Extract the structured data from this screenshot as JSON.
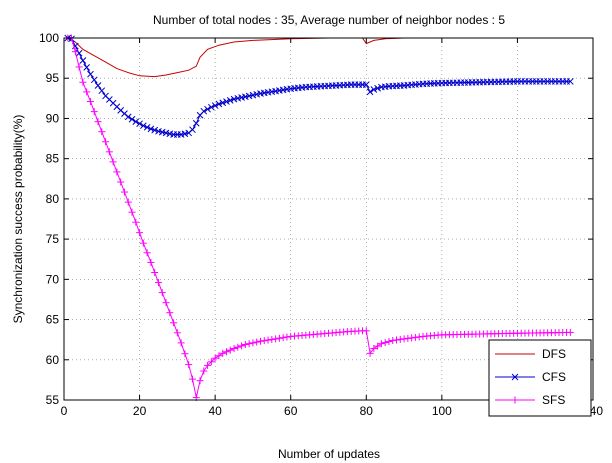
{
  "chart_data": {
    "type": "line",
    "title": "Number of total nodes : 35, Average number of neighbor nodes : 5",
    "xlabel": "Number of updates",
    "ylabel": "Synchronization success probability(%)",
    "xlim": [
      0,
      140
    ],
    "ylim": [
      55,
      100
    ],
    "xticks": [
      0,
      20,
      40,
      60,
      80,
      100,
      120,
      140
    ],
    "yticks": [
      55,
      60,
      65,
      70,
      75,
      80,
      85,
      90,
      95,
      100
    ],
    "grid": true,
    "legend_position": "bottom-right",
    "series": [
      {
        "name": "DFS",
        "color": "#cc0000",
        "marker": "none",
        "points": [
          [
            1,
            100
          ],
          [
            3,
            99.5
          ],
          [
            5,
            98.6
          ],
          [
            8,
            97.8
          ],
          [
            11,
            97
          ],
          [
            14,
            96.2
          ],
          [
            17,
            95.7
          ],
          [
            20,
            95.3
          ],
          [
            24,
            95.2
          ],
          [
            27,
            95.4
          ],
          [
            30,
            95.7
          ],
          [
            33,
            96
          ],
          [
            35,
            96.5
          ],
          [
            36,
            97.6
          ],
          [
            38,
            98.6
          ],
          [
            41,
            99.1
          ],
          [
            45,
            99.5
          ],
          [
            50,
            99.7
          ],
          [
            60,
            99.9
          ],
          [
            70,
            100
          ],
          [
            79,
            100
          ],
          [
            80,
            99.3
          ],
          [
            82,
            99.7
          ],
          [
            85,
            99.9
          ],
          [
            90,
            100
          ],
          [
            100,
            100
          ],
          [
            110,
            100
          ],
          [
            120,
            100
          ],
          [
            134,
            100
          ]
        ]
      },
      {
        "name": "CFS",
        "color": "#0000cc",
        "marker": "x",
        "points": [
          [
            1,
            100
          ],
          [
            2,
            99.9
          ],
          [
            3,
            99
          ],
          [
            5,
            97.2
          ],
          [
            7,
            95.5
          ],
          [
            9,
            94.1
          ],
          [
            11,
            92.8
          ],
          [
            13,
            91.9
          ],
          [
            15,
            91
          ],
          [
            17,
            90.2
          ],
          [
            19,
            89.6
          ],
          [
            21,
            89.1
          ],
          [
            23,
            88.7
          ],
          [
            25,
            88.4
          ],
          [
            27,
            88.2
          ],
          [
            29,
            88
          ],
          [
            31,
            88
          ],
          [
            33,
            88.2
          ],
          [
            34,
            88.6
          ],
          [
            35,
            89.4
          ],
          [
            36,
            90.4
          ],
          [
            37,
            90.9
          ],
          [
            39,
            91.4
          ],
          [
            41,
            91.8
          ],
          [
            43,
            92.1
          ],
          [
            45,
            92.4
          ],
          [
            48,
            92.7
          ],
          [
            52,
            93.1
          ],
          [
            56,
            93.4
          ],
          [
            60,
            93.7
          ],
          [
            64,
            93.9
          ],
          [
            68,
            94
          ],
          [
            72,
            94.1
          ],
          [
            76,
            94.2
          ],
          [
            79,
            94.2
          ],
          [
            80,
            94.2
          ],
          [
            81,
            93.3
          ],
          [
            82,
            93.6
          ],
          [
            84,
            93.9
          ],
          [
            86,
            94
          ],
          [
            90,
            94.1
          ],
          [
            95,
            94.3
          ],
          [
            100,
            94.4
          ],
          [
            110,
            94.5
          ],
          [
            120,
            94.6
          ],
          [
            134,
            94.6
          ]
        ]
      },
      {
        "name": "SFS",
        "color": "#ff00ff",
        "marker": "+",
        "points": [
          [
            1,
            100
          ],
          [
            2,
            100
          ],
          [
            3,
            98.3
          ],
          [
            5,
            94.5
          ],
          [
            7,
            92.1
          ],
          [
            9,
            89.6
          ],
          [
            11,
            87.1
          ],
          [
            13,
            84.6
          ],
          [
            15,
            82.1
          ],
          [
            17,
            79.6
          ],
          [
            19,
            77.1
          ],
          [
            21,
            74.5
          ],
          [
            23,
            72.1
          ],
          [
            25,
            69.6
          ],
          [
            27,
            67.1
          ],
          [
            29,
            64.6
          ],
          [
            31,
            62.1
          ],
          [
            33,
            59.4
          ],
          [
            34,
            57.6
          ],
          [
            35,
            55.3
          ],
          [
            36,
            57.4
          ],
          [
            37,
            58.6
          ],
          [
            38,
            59.3
          ],
          [
            40,
            60.2
          ],
          [
            42,
            60.8
          ],
          [
            45,
            61.4
          ],
          [
            48,
            61.9
          ],
          [
            52,
            62.3
          ],
          [
            56,
            62.6
          ],
          [
            60,
            62.9
          ],
          [
            65,
            63.1
          ],
          [
            70,
            63.3
          ],
          [
            75,
            63.5
          ],
          [
            79,
            63.6
          ],
          [
            80,
            63.6
          ],
          [
            81,
            60.8
          ],
          [
            82,
            61.4
          ],
          [
            84,
            62
          ],
          [
            87,
            62.4
          ],
          [
            90,
            62.6
          ],
          [
            95,
            62.9
          ],
          [
            100,
            63.1
          ],
          [
            110,
            63.2
          ],
          [
            120,
            63.3
          ],
          [
            134,
            63.4
          ]
        ]
      }
    ]
  }
}
